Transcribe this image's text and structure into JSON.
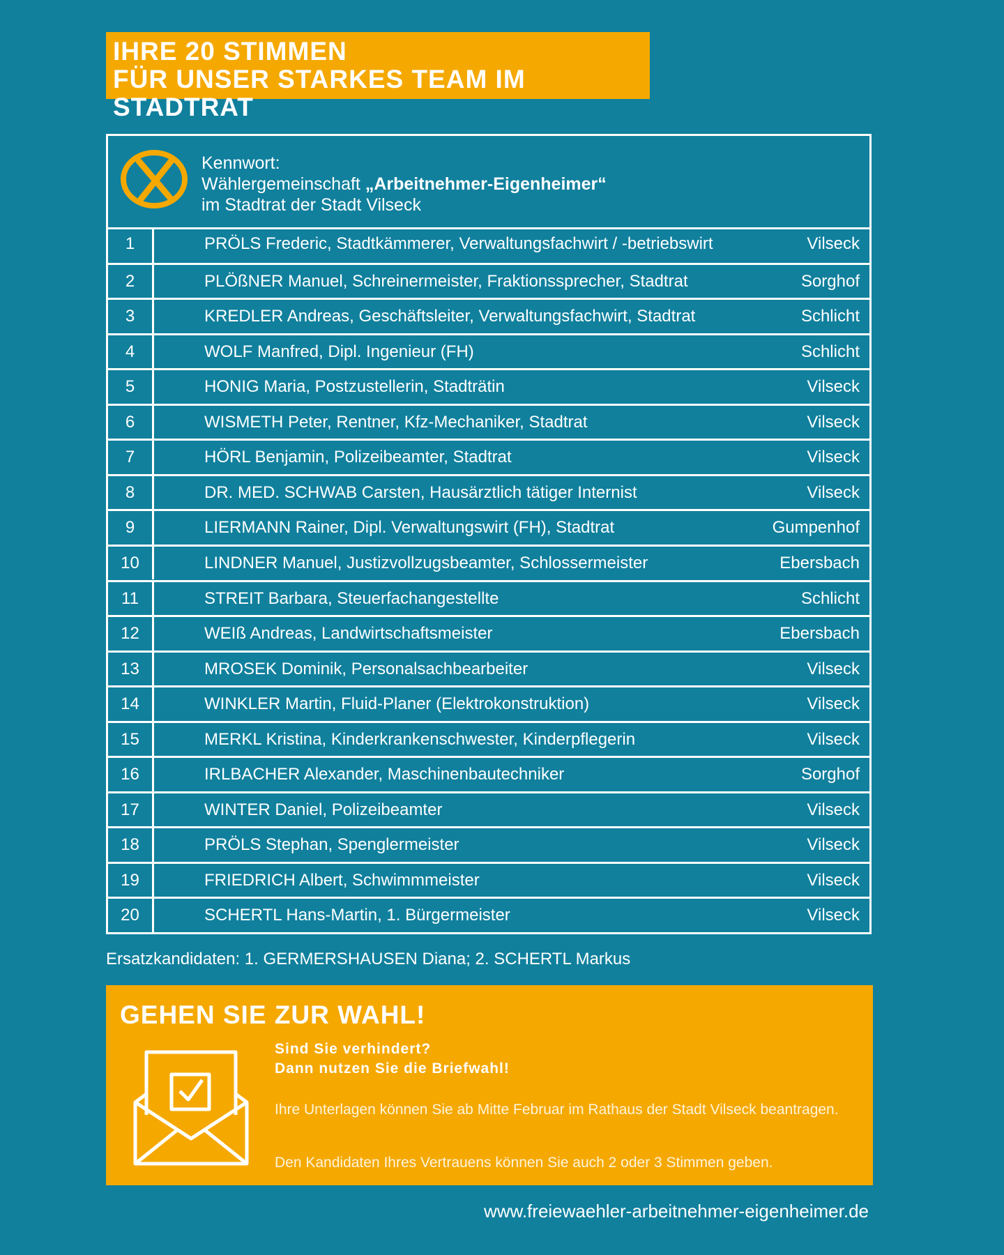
{
  "header": {
    "title": [
      "IHRE 20 STIMMEN",
      "FÜR UNSER STARKES TEAM IM STADTRAT"
    ]
  },
  "table": {
    "kennwort": "Kennwort:",
    "group_prefix": "Wählergemeinschaft",
    "group_name": "„Arbeitnehmer-Eigenheimer“",
    "group_suffix": "im Stadtrat der Stadt Vilseck",
    "rows": [
      [
        "1",
        "PRÖLS Frederic, Stadtkämmerer, Verwaltungsfachwirt / -betriebswirt",
        "Vilseck"
      ],
      [
        "2",
        "PLÖßNER Manuel, Schreinermeister, Fraktionssprecher, Stadtrat",
        "Sorghof"
      ],
      [
        "3",
        "KREDLER Andreas, Geschäftsleiter, Verwaltungsfachwirt, Stadtrat",
        "Schlicht"
      ],
      [
        "4",
        "WOLF Manfred, Dipl. Ingenieur (FH)",
        "Schlicht"
      ],
      [
        "5",
        "HONIG Maria, Postzustellerin, Stadträtin",
        "Vilseck"
      ],
      [
        "6",
        "WISMETH Peter, Rentner, Kfz-Mechaniker, Stadtrat",
        "Vilseck"
      ],
      [
        "7",
        "HÖRL Benjamin, Polizeibeamter, Stadtrat",
        "Vilseck"
      ],
      [
        "8",
        "DR. MED. SCHWAB Carsten, Hausärztlich tätiger Internist",
        "Vilseck"
      ],
      [
        "9",
        "LIERMANN Rainer, Dipl. Verwaltungswirt (FH), Stadtrat",
        "Gumpenhof"
      ],
      [
        "10",
        "LINDNER Manuel, Justizvollzugsbeamter, Schlossermeister",
        "Ebersbach"
      ],
      [
        "11",
        "STREIT Barbara, Steuerfachangestellte",
        "Schlicht"
      ],
      [
        "12",
        "WEIß Andreas, Landwirtschaftsmeister",
        "Ebersbach"
      ],
      [
        "13",
        "MROSEK Dominik, Personalsachbearbeiter",
        "Vilseck"
      ],
      [
        "14",
        "WINKLER Martin, Fluid-Planer (Elektrokonstruktion)",
        "Vilseck"
      ],
      [
        "15",
        "MERKL Kristina, Kinderkrankenschwester, Kinderpflegerin",
        "Vilseck"
      ],
      [
        "16",
        "IRLBACHER Alexander, Maschinenbautechniker",
        "Sorghof"
      ],
      [
        "17",
        "WINTER Daniel, Polizeibeamter",
        "Vilseck"
      ],
      [
        "18",
        "PRÖLS Stephan, Spenglermeister",
        "Vilseck"
      ],
      [
        "19",
        "FRIEDRICH Albert, Schwimmmeister",
        "Vilseck"
      ],
      [
        "20",
        "SCHERTL Hans-Martin, 1. Bürgermeister",
        "Vilseck"
      ]
    ]
  },
  "ersatz": "Ersatzkandidaten: 1. GERMERSHAUSEN Diana; 2. SCHERTL Markus",
  "cta": {
    "title": "GEHEN SIE ZUR WAHL!",
    "subtitle": [
      "Sind Sie verhindert?",
      "Dann nutzen Sie die Briefwahl!"
    ],
    "paragraphs": [
      "Ihre Unterlagen können Sie ab Mitte Februar im Rathaus der Stadt Vilseck beantragen.",
      "Den Kandidaten Ihres Vertrauens können Sie auch 2 oder 3 Stimmen geben."
    ]
  },
  "url": "www.freiewaehler-arbeitnehmer-eigenheimer.de"
}
